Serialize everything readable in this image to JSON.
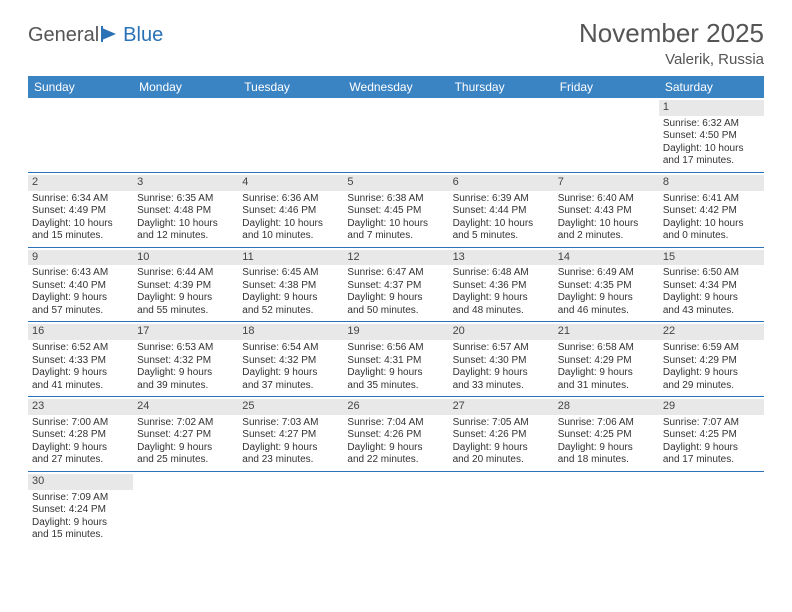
{
  "brand": {
    "word1": "General",
    "word2": "Blue"
  },
  "title": "November 2025",
  "location": "Valerik, Russia",
  "weekdays": [
    "Sunday",
    "Monday",
    "Tuesday",
    "Wednesday",
    "Thursday",
    "Friday",
    "Saturday"
  ],
  "colors": {
    "header_bg": "#3b84c4",
    "header_text": "#ffffff",
    "rule": "#2a72b5",
    "daynum_bg": "#e8e8e8",
    "text": "#333333",
    "title_text": "#555555"
  },
  "labels": {
    "sunrise": "Sunrise:",
    "sunset": "Sunset:",
    "daylight": "Daylight:"
  },
  "weeks": [
    [
      {
        "blank": true
      },
      {
        "blank": true
      },
      {
        "blank": true
      },
      {
        "blank": true
      },
      {
        "blank": true
      },
      {
        "blank": true
      },
      {
        "n": 1,
        "sunrise": "6:32 AM",
        "sunset": "4:50 PM",
        "dh": 10,
        "dm": 17
      }
    ],
    [
      {
        "n": 2,
        "sunrise": "6:34 AM",
        "sunset": "4:49 PM",
        "dh": 10,
        "dm": 15
      },
      {
        "n": 3,
        "sunrise": "6:35 AM",
        "sunset": "4:48 PM",
        "dh": 10,
        "dm": 12
      },
      {
        "n": 4,
        "sunrise": "6:36 AM",
        "sunset": "4:46 PM",
        "dh": 10,
        "dm": 10
      },
      {
        "n": 5,
        "sunrise": "6:38 AM",
        "sunset": "4:45 PM",
        "dh": 10,
        "dm": 7
      },
      {
        "n": 6,
        "sunrise": "6:39 AM",
        "sunset": "4:44 PM",
        "dh": 10,
        "dm": 5
      },
      {
        "n": 7,
        "sunrise": "6:40 AM",
        "sunset": "4:43 PM",
        "dh": 10,
        "dm": 2
      },
      {
        "n": 8,
        "sunrise": "6:41 AM",
        "sunset": "4:42 PM",
        "dh": 10,
        "dm": 0
      }
    ],
    [
      {
        "n": 9,
        "sunrise": "6:43 AM",
        "sunset": "4:40 PM",
        "dh": 9,
        "dm": 57
      },
      {
        "n": 10,
        "sunrise": "6:44 AM",
        "sunset": "4:39 PM",
        "dh": 9,
        "dm": 55
      },
      {
        "n": 11,
        "sunrise": "6:45 AM",
        "sunset": "4:38 PM",
        "dh": 9,
        "dm": 52
      },
      {
        "n": 12,
        "sunrise": "6:47 AM",
        "sunset": "4:37 PM",
        "dh": 9,
        "dm": 50
      },
      {
        "n": 13,
        "sunrise": "6:48 AM",
        "sunset": "4:36 PM",
        "dh": 9,
        "dm": 48
      },
      {
        "n": 14,
        "sunrise": "6:49 AM",
        "sunset": "4:35 PM",
        "dh": 9,
        "dm": 46
      },
      {
        "n": 15,
        "sunrise": "6:50 AM",
        "sunset": "4:34 PM",
        "dh": 9,
        "dm": 43
      }
    ],
    [
      {
        "n": 16,
        "sunrise": "6:52 AM",
        "sunset": "4:33 PM",
        "dh": 9,
        "dm": 41
      },
      {
        "n": 17,
        "sunrise": "6:53 AM",
        "sunset": "4:32 PM",
        "dh": 9,
        "dm": 39
      },
      {
        "n": 18,
        "sunrise": "6:54 AM",
        "sunset": "4:32 PM",
        "dh": 9,
        "dm": 37
      },
      {
        "n": 19,
        "sunrise": "6:56 AM",
        "sunset": "4:31 PM",
        "dh": 9,
        "dm": 35
      },
      {
        "n": 20,
        "sunrise": "6:57 AM",
        "sunset": "4:30 PM",
        "dh": 9,
        "dm": 33
      },
      {
        "n": 21,
        "sunrise": "6:58 AM",
        "sunset": "4:29 PM",
        "dh": 9,
        "dm": 31
      },
      {
        "n": 22,
        "sunrise": "6:59 AM",
        "sunset": "4:29 PM",
        "dh": 9,
        "dm": 29
      }
    ],
    [
      {
        "n": 23,
        "sunrise": "7:00 AM",
        "sunset": "4:28 PM",
        "dh": 9,
        "dm": 27
      },
      {
        "n": 24,
        "sunrise": "7:02 AM",
        "sunset": "4:27 PM",
        "dh": 9,
        "dm": 25
      },
      {
        "n": 25,
        "sunrise": "7:03 AM",
        "sunset": "4:27 PM",
        "dh": 9,
        "dm": 23
      },
      {
        "n": 26,
        "sunrise": "7:04 AM",
        "sunset": "4:26 PM",
        "dh": 9,
        "dm": 22
      },
      {
        "n": 27,
        "sunrise": "7:05 AM",
        "sunset": "4:26 PM",
        "dh": 9,
        "dm": 20
      },
      {
        "n": 28,
        "sunrise": "7:06 AM",
        "sunset": "4:25 PM",
        "dh": 9,
        "dm": 18
      },
      {
        "n": 29,
        "sunrise": "7:07 AM",
        "sunset": "4:25 PM",
        "dh": 9,
        "dm": 17
      }
    ],
    [
      {
        "n": 30,
        "sunrise": "7:09 AM",
        "sunset": "4:24 PM",
        "dh": 9,
        "dm": 15
      },
      {
        "blank": true
      },
      {
        "blank": true
      },
      {
        "blank": true
      },
      {
        "blank": true
      },
      {
        "blank": true
      },
      {
        "blank": true
      }
    ]
  ]
}
